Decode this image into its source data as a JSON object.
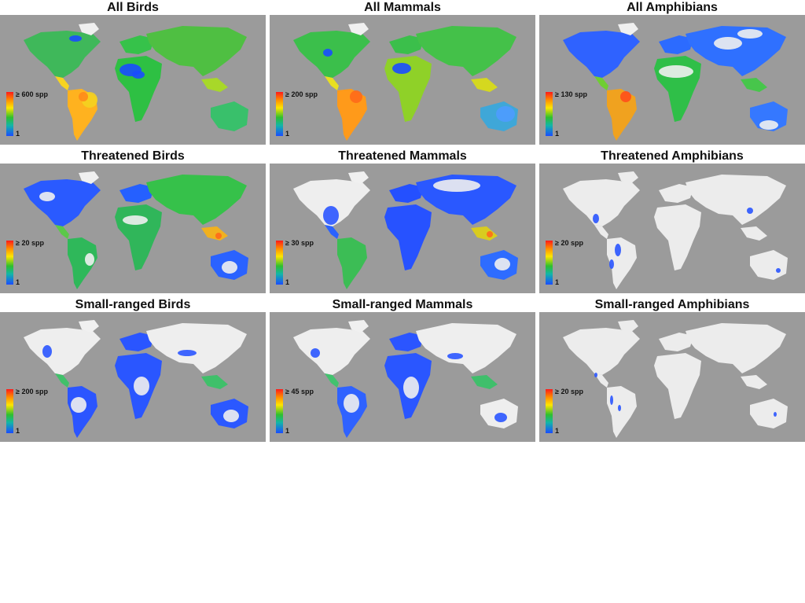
{
  "figure": {
    "panels": [
      {
        "title": "All Birds",
        "legend_max": "≥ 600 spp",
        "legend_min": "1",
        "style": "all-birds"
      },
      {
        "title": "All Mammals",
        "legend_max": "≥ 200 spp",
        "legend_min": "1",
        "style": "all-mammals"
      },
      {
        "title": "All Amphibians",
        "legend_max": "≥ 130 spp",
        "legend_min": "1",
        "style": "all-amphibians"
      },
      {
        "title": "Threatened Birds",
        "legend_max": "≥ 20 spp",
        "legend_min": "1",
        "style": "threat-birds"
      },
      {
        "title": "Threatened Mammals",
        "legend_max": "≥ 30 spp",
        "legend_min": "1",
        "style": "threat-mammals"
      },
      {
        "title": "Threatened Amphibians",
        "legend_max": "≥ 20 spp",
        "legend_min": "1",
        "style": "threat-amphibians"
      },
      {
        "title": "Small-ranged Birds",
        "legend_max": "≥ 200 spp",
        "legend_min": "1",
        "style": "small-birds"
      },
      {
        "title": "Small-ranged Mammals",
        "legend_max": "≥ 45 spp",
        "legend_min": "1",
        "style": "small-mammals"
      },
      {
        "title": "Small-ranged Amphibians",
        "legend_max": "≥ 20 spp",
        "legend_min": "1",
        "style": "small-amphibians"
      }
    ]
  },
  "colors": {
    "ocean": "#9b9b9b",
    "no_data_land": "#efefef",
    "scale_high": "#ff1a1a",
    "scale_mid": "#ffe600",
    "scale_green": "#2fbf2f",
    "scale_low": "#1a4cff"
  }
}
